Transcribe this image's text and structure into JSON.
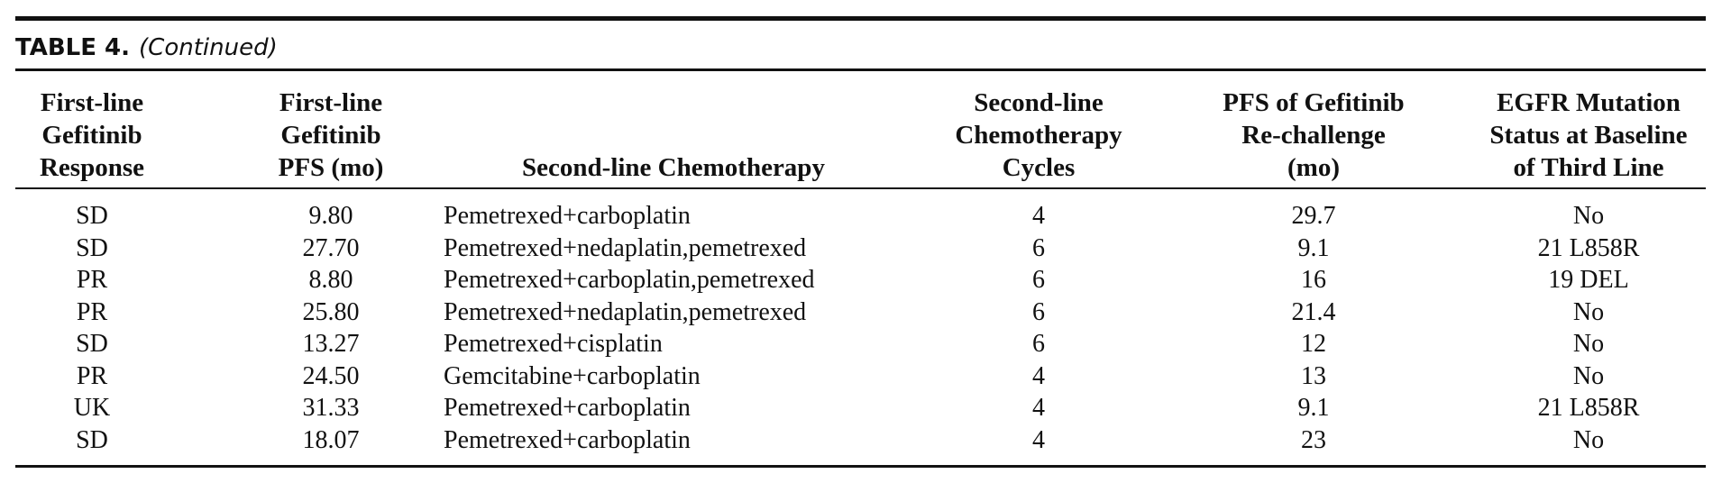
{
  "caption": {
    "label": "TABLE 4.",
    "sub": "(Continued)"
  },
  "headers": [
    [
      "First-line",
      "Gefitinib",
      "Response"
    ],
    [
      "First-line",
      "Gefitinib",
      "PFS (mo)"
    ],
    [
      "Second-line Chemotherapy"
    ],
    [
      "Second-line",
      "Chemotherapy",
      "Cycles"
    ],
    [
      "PFS of Gefitinib",
      "Re-challenge",
      "(mo)"
    ],
    [
      "EGFR Mutation",
      "Status at Baseline",
      "of Third Line"
    ]
  ],
  "rows": [
    [
      "SD",
      "9.80",
      "Pemetrexed+carboplatin",
      "4",
      "29.7",
      "No"
    ],
    [
      "SD",
      "27.70",
      "Pemetrexed+nedaplatin,pemetrexed",
      "6",
      "9.1",
      "21 L858R"
    ],
    [
      "PR",
      "8.80",
      "Pemetrexed+carboplatin,pemetrexed",
      "6",
      "16",
      "19 DEL"
    ],
    [
      "PR",
      "25.80",
      "Pemetrexed+nedaplatin,pemetrexed",
      "6",
      "21.4",
      "No"
    ],
    [
      "SD",
      "13.27",
      "Pemetrexed+cisplatin",
      "6",
      "12",
      "No"
    ],
    [
      "PR",
      "24.50",
      "Gemcitabine+carboplatin",
      "4",
      "13",
      "No"
    ],
    [
      "UK",
      "31.33",
      "Pemetrexed+carboplatin",
      "4",
      "9.1",
      "21 L858R"
    ],
    [
      "SD",
      "18.07",
      "Pemetrexed+carboplatin",
      "4",
      "23",
      "No"
    ]
  ]
}
